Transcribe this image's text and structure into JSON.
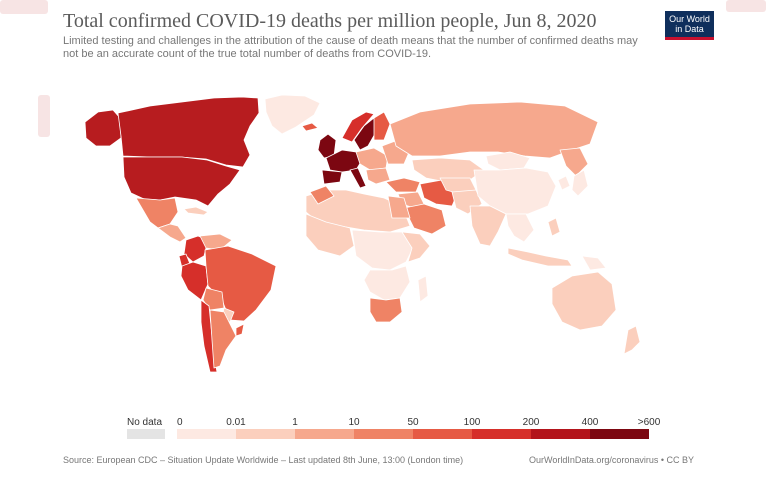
{
  "title": "Total confirmed COVID-19 deaths per million people, Jun 8, 2020",
  "subtitle": "Limited testing and challenges in the attribution of the cause of death means that the number of confirmed deaths may not be an accurate count of the true total number of deaths from COVID-19.",
  "logo": {
    "line1": "Our World",
    "line2": "in Data",
    "icon": "owid-logo"
  },
  "legend": {
    "no_data_label": "No data",
    "no_data_color": "#e4e4e4",
    "ticks": [
      "0",
      "0.01",
      "1",
      "10",
      "50",
      "100",
      "200",
      "400",
      ">600"
    ],
    "bin_colors": [
      "#fde9e2",
      "#fbcfbd",
      "#f6a88d",
      "#ef8365",
      "#e65a44",
      "#d62f2a",
      "#b3141b",
      "#7c0711"
    ]
  },
  "footer": {
    "source": "Source: European CDC – Situation Update Worldwide – Last updated 8th June, 13:00 (London time)",
    "credit": "OurWorldInData.org/coronavirus • CC BY"
  }
}
